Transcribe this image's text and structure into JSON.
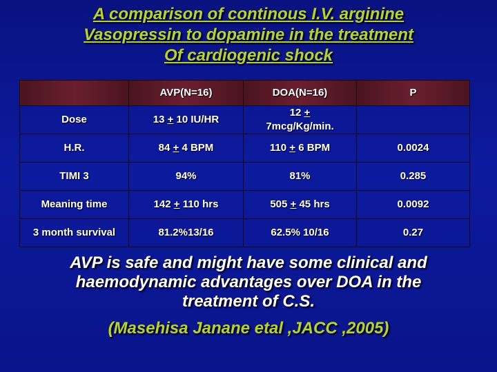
{
  "title": {
    "line1": "A comparison  of continous I.V. arginine",
    "line2": "Vasopressin to dopamine in the treatment",
    "line3": "Of cardiogenic shock"
  },
  "table": {
    "headers": [
      "",
      "AVP(N=16)",
      "DOA(N=16)",
      "P"
    ],
    "rows": [
      {
        "label": "Dose",
        "avp": [
          "13 ",
          "+",
          " 10 IU/HR"
        ],
        "doa": [
          "12 ",
          "+",
          "7mcg/Kg/min."
        ],
        "p": ""
      },
      {
        "label": "H.R.",
        "avp": [
          "84 ",
          "+",
          " 4 BPM"
        ],
        "doa": [
          "110 ",
          "+",
          " 6 BPM"
        ],
        "p": "0.0024"
      },
      {
        "label": "TIMI 3",
        "avp": [
          "94%",
          "",
          ""
        ],
        "doa": [
          "81%",
          "",
          ""
        ],
        "p": "0.285"
      },
      {
        "label": "Meaning time",
        "avp": [
          "142 ",
          "+",
          " 110 hrs"
        ],
        "doa": [
          "505 ",
          "+",
          " 45 hrs"
        ],
        "p": "0.0092"
      },
      {
        "label": "3 month survival",
        "avp": [
          "81.2%13/16",
          "",
          ""
        ],
        "doa": [
          "62.5% 10/16",
          "",
          ""
        ],
        "p": "0.27"
      }
    ]
  },
  "conclusion": {
    "line1": "AVP is safe and might have some clinical and",
    "line2": "haemodynamic advantages over DOA in the",
    "line3": "treatment of C.S."
  },
  "citation": "(Masehisa Janane etal ,JACC ,2005)"
}
